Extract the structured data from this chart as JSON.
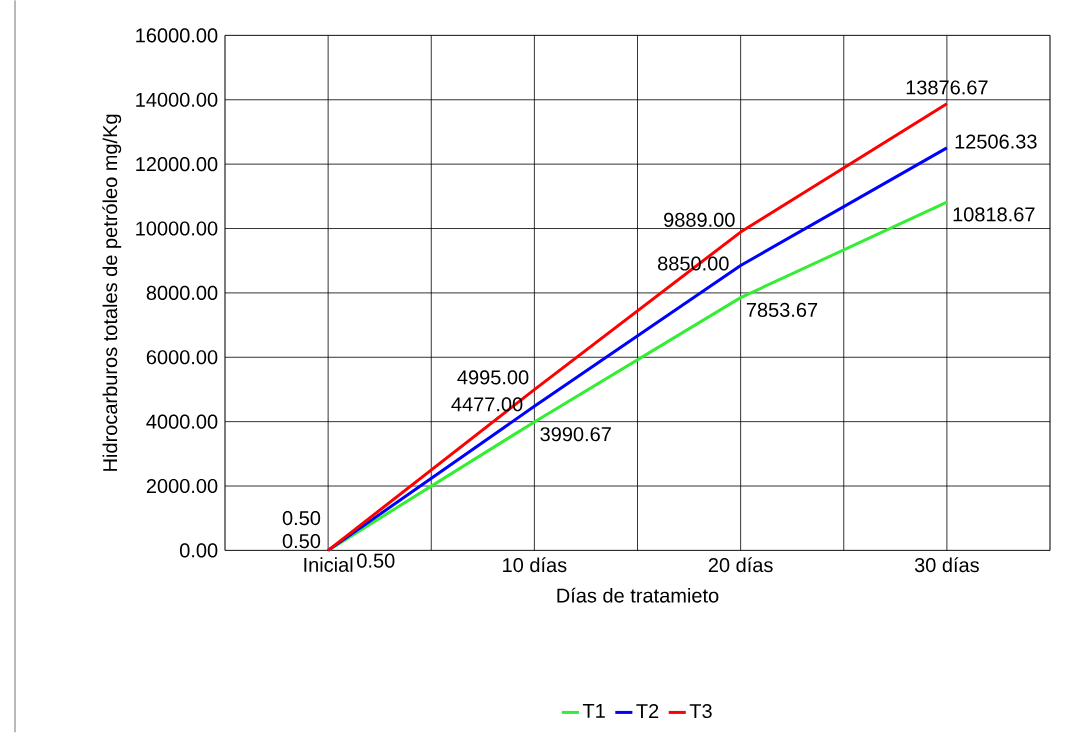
{
  "chart_data": {
    "type": "line",
    "xlabel": "Días de tratamieto",
    "ylabel": "Hidrocarburos totales de petróleo mg/Kg",
    "categories": [
      "Inicial",
      "10 días",
      "20 días",
      "30 días"
    ],
    "series": [
      {
        "name": "T1",
        "color": "#33ee33",
        "values": [
          0.5,
          3990.67,
          7853.67,
          10818.67
        ],
        "value_labels": [
          "0.50",
          "3990.67",
          "7853.67",
          "10818.67"
        ]
      },
      {
        "name": "T2",
        "color": "#0000ff",
        "values": [
          0.5,
          4477.0,
          8850.0,
          12506.33
        ],
        "value_labels": [
          "0.50",
          "4477.00",
          "8850.00",
          "12506.33"
        ]
      },
      {
        "name": "T3",
        "color": "#ff0000",
        "values": [
          0.5,
          4995.0,
          9889.0,
          13876.67
        ],
        "value_labels": [
          "0.50",
          "4995.00",
          "9889.00",
          "13876.67"
        ]
      }
    ],
    "ylim": [
      0,
      16000
    ],
    "yticks": [
      {
        "value": 0,
        "label": "0.00"
      },
      {
        "value": 2000,
        "label": "2000.00"
      },
      {
        "value": 4000,
        "label": "4000.00"
      },
      {
        "value": 6000,
        "label": "6000.00"
      },
      {
        "value": 8000,
        "label": "8000.00"
      },
      {
        "value": 10000,
        "label": "10000.00"
      },
      {
        "value": 12000,
        "label": "12000.00"
      },
      {
        "value": 14000,
        "label": "14000.00"
      },
      {
        "value": 16000,
        "label": "16000.00"
      }
    ],
    "grid": true,
    "legend": "bottom",
    "marker": "none",
    "line_style": "solid"
  }
}
